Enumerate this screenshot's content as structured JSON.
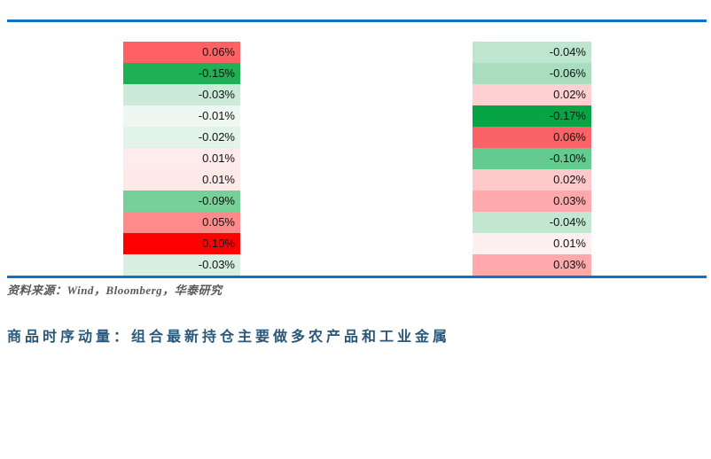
{
  "colors": {
    "rule_blue": "#1171C6",
    "title_blue": "#29587A",
    "source_gray": "#595959",
    "max_positive_red": "#FF0000",
    "max_negative_green": "#07A445"
  },
  "heatmap": {
    "columns": [
      {
        "name": "column-1",
        "cells": [
          {
            "value": "0.06%",
            "bg": "#FF6165"
          },
          {
            "value": "-0.15%",
            "bg": "#1FAF55"
          },
          {
            "value": "-0.03%",
            "bg": "#CBEAD7"
          },
          {
            "value": "-0.01%",
            "bg": "#EFF7F2"
          },
          {
            "value": "-0.02%",
            "bg": "#E2F3E9"
          },
          {
            "value": "0.01%",
            "bg": "#FEECEC"
          },
          {
            "value": "0.01%",
            "bg": "#FEE9E9"
          },
          {
            "value": "-0.09%",
            "bg": "#77D099"
          },
          {
            "value": "0.05%",
            "bg": "#FF8A8C"
          },
          {
            "value": "0.10%",
            "bg": "#FF0000"
          },
          {
            "value": "-0.03%",
            "bg": "#D8EFE1"
          }
        ]
      },
      {
        "name": "column-2",
        "cells": [
          {
            "value": "-0.04%",
            "bg": "#BEE5CD"
          },
          {
            "value": "-0.06%",
            "bg": "#A8DEBE"
          },
          {
            "value": "0.02%",
            "bg": "#FFD0D2"
          },
          {
            "value": "-0.17%",
            "bg": "#07A445"
          },
          {
            "value": "0.06%",
            "bg": "#FC6368"
          },
          {
            "value": "-0.10%",
            "bg": "#63CB8D"
          },
          {
            "value": "0.02%",
            "bg": "#FFC9CC"
          },
          {
            "value": "0.03%",
            "bg": "#FFA9AC"
          },
          {
            "value": "-0.04%",
            "bg": "#C3E7D1"
          },
          {
            "value": "0.01%",
            "bg": "#FEEFF0"
          },
          {
            "value": "0.03%",
            "bg": "#FFA9AC"
          }
        ]
      }
    ]
  },
  "source_note": "资料来源：Wind，Bloomberg，华泰研究",
  "next_figure_title": "商品时序动量：组合最新持仓主要做多农产品和工业金属",
  "chart_data": {
    "type": "heatmap",
    "value_format": "percent",
    "color_semantics": {
      "positive": "red",
      "negative": "green",
      "near_zero": "white"
    },
    "columns": [
      {
        "name": "column-1",
        "values_pct": [
          0.06,
          -0.15,
          -0.03,
          -0.01,
          -0.02,
          0.01,
          0.01,
          -0.09,
          0.05,
          0.1,
          -0.03
        ]
      },
      {
        "name": "column-2",
        "values_pct": [
          -0.04,
          -0.06,
          0.02,
          -0.17,
          0.06,
          -0.1,
          0.02,
          0.03,
          -0.04,
          0.01,
          0.03
        ]
      }
    ],
    "legend_position": "none",
    "grid": false
  }
}
